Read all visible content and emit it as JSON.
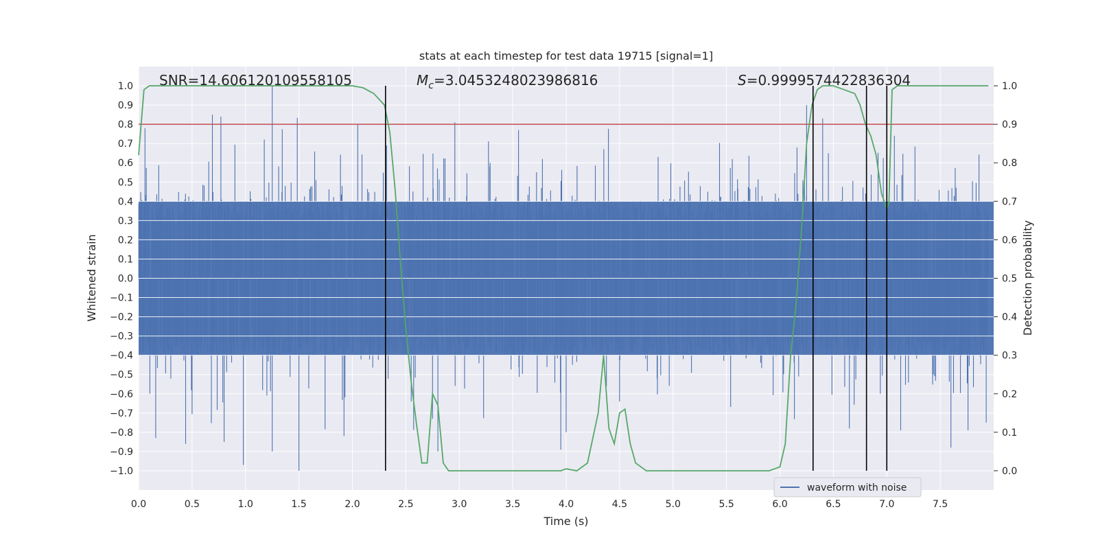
{
  "chart_data": {
    "type": "line",
    "title": "stats at each timestep for test data 19715 [signal=1]",
    "xlabel": "Time (s)",
    "ylabel_left": "Whitened strain",
    "ylabel_right": "Detection probability",
    "xlim": [
      0.0,
      8.0
    ],
    "ylim_left": [
      -1.1,
      1.1
    ],
    "ylim_right": [
      -0.05,
      1.05
    ],
    "x_ticks": [
      "0.0",
      "0.5",
      "1.0",
      "1.5",
      "2.0",
      "2.5",
      "3.0",
      "3.5",
      "4.0",
      "4.5",
      "5.0",
      "5.5",
      "6.0",
      "6.5",
      "7.0",
      "7.5"
    ],
    "x_tick_values": [
      0.0,
      0.5,
      1.0,
      1.5,
      2.0,
      2.5,
      3.0,
      3.5,
      4.0,
      4.5,
      5.0,
      5.5,
      6.0,
      6.5,
      7.0,
      7.5
    ],
    "y_left_ticks": [
      "1.0",
      "0.9",
      "0.8",
      "0.7",
      "0.6",
      "0.5",
      "0.4",
      "0.3",
      "0.2",
      "0.1",
      "0.0",
      "−0.1",
      "−0.2",
      "−0.3",
      "−0.4",
      "−0.5",
      "−0.6",
      "−0.7",
      "−0.8",
      "−0.9",
      "−1.0"
    ],
    "y_left_tick_values": [
      1.0,
      0.9,
      0.8,
      0.7,
      0.6,
      0.5,
      0.4,
      0.3,
      0.2,
      0.1,
      0.0,
      -0.1,
      -0.2,
      -0.3,
      -0.4,
      -0.5,
      -0.6,
      -0.7,
      -0.8,
      -0.9,
      -1.0
    ],
    "y_right_ticks": [
      "1.0",
      "0.9",
      "0.8",
      "0.7",
      "0.6",
      "0.5",
      "0.4",
      "0.3",
      "0.2",
      "0.1",
      "0.0"
    ],
    "y_right_tick_values": [
      1.0,
      0.9,
      0.8,
      0.7,
      0.6,
      0.5,
      0.4,
      0.3,
      0.2,
      0.1,
      0.0
    ],
    "annotations": {
      "snr": "SNR=14.606120109558105",
      "mc_symbol": "M",
      "mc_sub": "c",
      "mc_value": "=3.0453248023986816",
      "s_symbol": "S",
      "s_value": "=0.9999574422836304"
    },
    "threshold_right": 0.9,
    "vertical_lines_x": [
      2.31,
      6.31,
      6.81,
      7.0
    ],
    "series": [
      {
        "name": "waveform with noise",
        "axis": "left",
        "color": "#4c72b0",
        "kind": "noise",
        "envelope_base": 0.4,
        "peak_max": 1.0,
        "peak_min": -1.0
      },
      {
        "name": "detection probability",
        "axis": "right",
        "color": "#55a868",
        "x": [
          0.0,
          0.05,
          0.1,
          0.2,
          0.4,
          0.6,
          0.8,
          1.0,
          1.2,
          1.4,
          1.6,
          1.8,
          2.0,
          2.1,
          2.2,
          2.3,
          2.35,
          2.4,
          2.45,
          2.5,
          2.55,
          2.6,
          2.65,
          2.7,
          2.75,
          2.8,
          2.85,
          2.9,
          2.95,
          3.05,
          3.2,
          3.5,
          3.75,
          3.95,
          4.0,
          4.1,
          4.2,
          4.3,
          4.35,
          4.4,
          4.45,
          4.5,
          4.55,
          4.6,
          4.65,
          4.7,
          4.75,
          4.8,
          5.0,
          5.5,
          5.9,
          6.0,
          6.05,
          6.1,
          6.15,
          6.2,
          6.25,
          6.3,
          6.35,
          6.4,
          6.45,
          6.5,
          6.6,
          6.7,
          6.75,
          6.8,
          6.85,
          6.9,
          6.95,
          7.0,
          7.02,
          7.05,
          7.1,
          7.2,
          7.5,
          7.95
        ],
        "values": [
          0.82,
          0.99,
          1.0,
          1.0,
          1.0,
          1.0,
          1.0,
          1.0,
          1.0,
          1.0,
          1.0,
          1.0,
          1.0,
          0.995,
          0.98,
          0.95,
          0.88,
          0.73,
          0.54,
          0.37,
          0.23,
          0.12,
          0.02,
          0.02,
          0.2,
          0.17,
          0.02,
          0.0,
          0.0,
          0.0,
          0.0,
          0.0,
          0.0,
          0.0,
          0.005,
          0.0,
          0.02,
          0.15,
          0.3,
          0.11,
          0.07,
          0.15,
          0.16,
          0.07,
          0.02,
          0.01,
          0.0,
          0.0,
          0.0,
          0.0,
          0.0,
          0.01,
          0.07,
          0.3,
          0.43,
          0.62,
          0.85,
          0.95,
          0.99,
          1.0,
          1.0,
          1.0,
          0.99,
          0.98,
          0.95,
          0.9,
          0.87,
          0.82,
          0.72,
          0.68,
          0.7,
          0.99,
          1.0,
          1.0,
          1.0,
          1.0
        ]
      }
    ],
    "legend": {
      "label": "waveform with noise",
      "position": "lower-right"
    },
    "grid": true,
    "background_color": "#eaeaf2",
    "threshold_color": "#c44e52",
    "vline_color": "#000000"
  }
}
